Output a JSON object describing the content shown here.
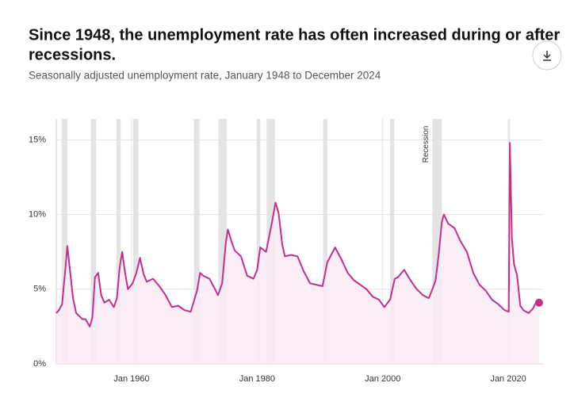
{
  "chart_data": {
    "type": "line",
    "title_lines": [
      "Since 1948, the unemployment rate has often increased during or after",
      "recessions."
    ],
    "subtitle": "Seasonally adjusted unemployment rate, January 1948 to December 2024",
    "annotation": "Recession",
    "x": [
      "1948-01",
      "1948-06",
      "1948-12",
      "1949-06",
      "1949-10",
      "1950-03",
      "1950-09",
      "1951-03",
      "1951-09",
      "1952-03",
      "1952-09",
      "1953-05",
      "1953-10",
      "1954-03",
      "1954-09",
      "1955-03",
      "1955-09",
      "1956-06",
      "1957-03",
      "1957-09",
      "1958-02",
      "1958-07",
      "1959-01",
      "1959-06",
      "1960-03",
      "1960-10",
      "1961-05",
      "1961-12",
      "1962-06",
      "1963-06",
      "1964-06",
      "1965-06",
      "1966-06",
      "1967-06",
      "1968-06",
      "1969-06",
      "1970-06",
      "1970-12",
      "1971-06",
      "1972-06",
      "1973-06",
      "1973-10",
      "1974-06",
      "1975-01",
      "1975-05",
      "1975-12",
      "1976-06",
      "1977-06",
      "1978-06",
      "1979-06",
      "1980-01",
      "1980-07",
      "1981-06",
      "1982-06",
      "1982-12",
      "1983-06",
      "1984-01",
      "1984-06",
      "1985-06",
      "1986-06",
      "1987-06",
      "1988-06",
      "1989-06",
      "1990-06",
      "1991-03",
      "1992-06",
      "1993-06",
      "1994-06",
      "1995-06",
      "1996-06",
      "1997-06",
      "1998-06",
      "1999-06",
      "2000-04",
      "2001-03",
      "2001-12",
      "2002-06",
      "2003-06",
      "2004-06",
      "2005-06",
      "2006-06",
      "2007-05",
      "2007-12",
      "2008-06",
      "2008-12",
      "2009-06",
      "2009-10",
      "2010-06",
      "2011-06",
      "2012-06",
      "2013-06",
      "2014-06",
      "2015-06",
      "2016-06",
      "2017-06",
      "2018-06",
      "2019-06",
      "2020-02",
      "2020-04",
      "2020-08",
      "2020-12",
      "2021-06",
      "2021-12",
      "2022-06",
      "2023-04",
      "2023-12",
      "2024-06",
      "2024-12"
    ],
    "series": [
      {
        "name": "Unemployment rate",
        "color": "#c42f8a",
        "values": [
          3.4,
          3.6,
          4.0,
          6.2,
          7.9,
          6.3,
          4.4,
          3.4,
          3.2,
          3.0,
          3.0,
          2.5,
          3.1,
          5.8,
          6.1,
          4.6,
          4.1,
          4.3,
          3.8,
          4.4,
          6.4,
          7.5,
          6.0,
          5.0,
          5.4,
          6.1,
          7.1,
          6.0,
          5.5,
          5.7,
          5.2,
          4.6,
          3.8,
          3.9,
          3.6,
          3.5,
          4.9,
          6.1,
          5.9,
          5.7,
          4.9,
          4.6,
          5.4,
          8.1,
          9.0,
          8.2,
          7.6,
          7.2,
          5.9,
          5.7,
          6.3,
          7.8,
          7.5,
          9.6,
          10.8,
          10.1,
          8.0,
          7.2,
          7.3,
          7.2,
          6.2,
          5.4,
          5.3,
          5.2,
          6.8,
          7.8,
          7.0,
          6.1,
          5.6,
          5.3,
          5.0,
          4.5,
          4.3,
          3.8,
          4.3,
          5.7,
          5.8,
          6.3,
          5.6,
          5.0,
          4.6,
          4.4,
          5.0,
          5.6,
          7.3,
          9.5,
          10.0,
          9.4,
          9.1,
          8.2,
          7.5,
          6.1,
          5.3,
          4.9,
          4.3,
          4.0,
          3.6,
          3.5,
          14.8,
          8.4,
          6.7,
          5.9,
          3.9,
          3.6,
          3.4,
          3.7,
          4.1,
          4.1
        ]
      }
    ],
    "recessions": [
      [
        "1948-11",
        "1949-10"
      ],
      [
        "1953-07",
        "1954-05"
      ],
      [
        "1957-08",
        "1958-04"
      ],
      [
        "1960-04",
        "1961-02"
      ],
      [
        "1969-12",
        "1970-11"
      ],
      [
        "1973-11",
        "1975-03"
      ],
      [
        "1980-01",
        "1980-07"
      ],
      [
        "1981-07",
        "1982-11"
      ],
      [
        "1990-07",
        "1991-03"
      ],
      [
        "2001-03",
        "2001-11"
      ],
      [
        "2007-12",
        "2009-06"
      ],
      [
        "2020-02",
        "2020-04"
      ]
    ],
    "xlim": [
      "1948-01",
      "2024-12"
    ],
    "xticks": [
      {
        "value": "1960-01",
        "label": "Jan 1960"
      },
      {
        "value": "1980-01",
        "label": "Jan 1980"
      },
      {
        "value": "2000-01",
        "label": "Jan 2000"
      },
      {
        "value": "2020-01",
        "label": "Jan 2020"
      }
    ],
    "ylim": [
      0,
      16.4
    ],
    "yticks": [
      {
        "value": 0,
        "label": "0%"
      },
      {
        "value": 5,
        "label": "5%"
      },
      {
        "value": 10,
        "label": "10%"
      },
      {
        "value": 15,
        "label": "15%"
      }
    ],
    "area_color": "#fcebf4",
    "recession_color": "#e4e4e4",
    "grid": true
  }
}
